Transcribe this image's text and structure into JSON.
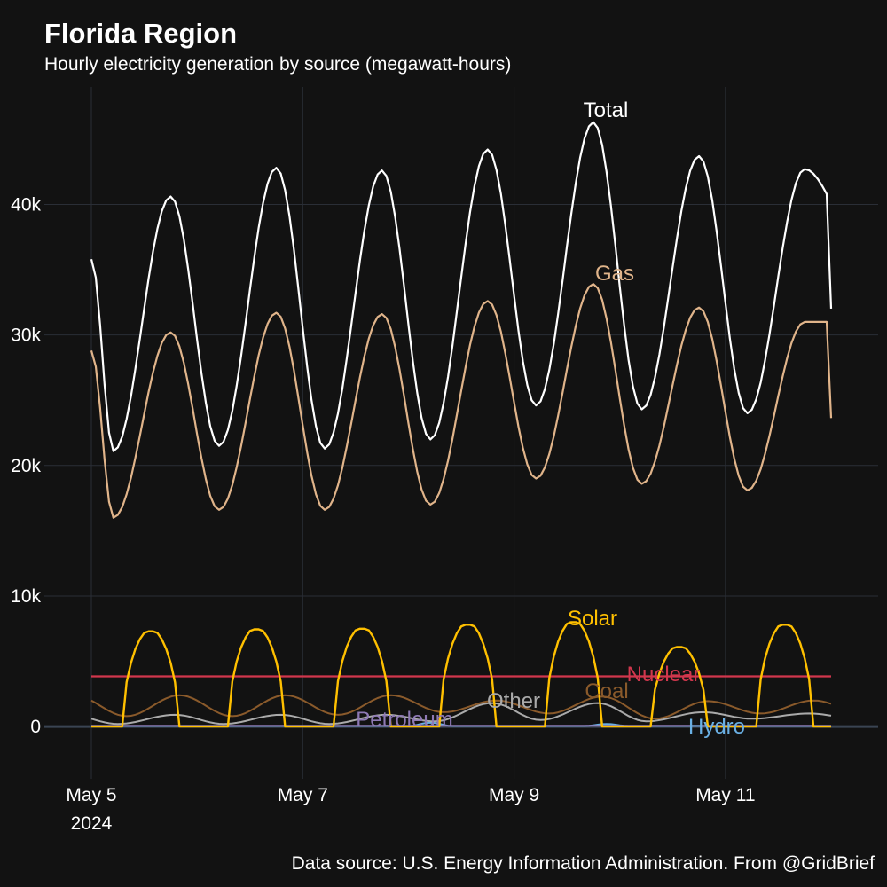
{
  "title": "Florida Region",
  "subtitle": "Hourly electricity generation by source (megawatt-hours)",
  "source": "Data source: U.S. Energy Information Administration. From @GridBrief",
  "chart_data": {
    "type": "line",
    "title": "Florida Region",
    "subtitle": "Hourly electricity generation by source (megawatt-hours)",
    "xlabel": "",
    "ylabel": "",
    "x_range": [
      "2024-05-05T00:00",
      "2024-05-12T00:00"
    ],
    "x_ticks": [
      {
        "date": "2024-05-05",
        "label": "May 5",
        "sublabel": "2024"
      },
      {
        "date": "2024-05-07",
        "label": "May 7",
        "sublabel": ""
      },
      {
        "date": "2024-05-09",
        "label": "May 9",
        "sublabel": ""
      },
      {
        "date": "2024-05-11",
        "label": "May 11",
        "sublabel": ""
      }
    ],
    "ylim": [
      -4000,
      49000
    ],
    "y_ticks": [
      {
        "value": 0,
        "label": "0"
      },
      {
        "value": 10000,
        "label": "10k"
      },
      {
        "value": 20000,
        "label": "20k"
      },
      {
        "value": 30000,
        "label": "30k"
      },
      {
        "value": 40000,
        "label": "40k"
      }
    ],
    "grid": true,
    "legend": "direct labels on lines",
    "series": [
      {
        "name": "Total",
        "color": "#ffffff",
        "daily_peaks": [
          40600,
          42800,
          42600,
          44200,
          46300,
          43700,
          42700
        ],
        "daily_troughs": [
          21100,
          21500,
          21300,
          22000,
          24600,
          24300,
          24000
        ],
        "start_value": 35800,
        "end_value": 39000
      },
      {
        "name": "Gas",
        "color": "#e0b48a",
        "daily_peaks": [
          30200,
          31700,
          31600,
          32600,
          33900,
          32100,
          31000
        ],
        "daily_troughs": [
          16000,
          16600,
          16600,
          17000,
          19000,
          18600,
          18100
        ],
        "start_value": 28800,
        "end_value": 31000
      },
      {
        "name": "Solar",
        "color": "#ffc000",
        "daily_peaks": [
          7300,
          7450,
          7500,
          7800,
          8000,
          6100,
          7800
        ],
        "night_value": 0
      },
      {
        "name": "Nuclear",
        "color": "#d1374d",
        "value": 3850
      },
      {
        "name": "Coal",
        "color": "#8a5a2b",
        "daily_peaks": [
          2400,
          2400,
          2400,
          2000,
          2300,
          1950,
          2000
        ],
        "daily_troughs": [
          800,
          800,
          900,
          1100,
          1000,
          600,
          1000
        ]
      },
      {
        "name": "Other",
        "color": "#aaaaaa",
        "daily_peaks": [
          900,
          900,
          900,
          1800,
          1800,
          1100,
          1000
        ],
        "daily_troughs": [
          200,
          200,
          200,
          400,
          500,
          400,
          600
        ]
      },
      {
        "name": "Petroleum",
        "color": "#8e79b5",
        "value": 60
      },
      {
        "name": "Hydro",
        "color": "#6ab0e4",
        "value": 40,
        "bumps": [
          {
            "date": "2024-05-08T05:00",
            "value": 300
          },
          {
            "date": "2024-05-09T21:00",
            "value": 200
          }
        ]
      }
    ]
  }
}
